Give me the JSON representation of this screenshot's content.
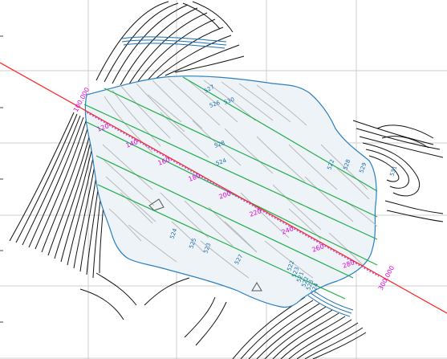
{
  "map": {
    "colors": {
      "background": "#ffffff",
      "grid": "#cfcfcf",
      "contour_outside": "#111111",
      "contour_inside": "#b9b9b9",
      "boundary": "#2a7fc0",
      "section_lines": "#1fae4a",
      "axis_line": "#ff2020",
      "station_labels": "#e000e0",
      "elevation_labels": "#1a6fb0"
    },
    "stations": [
      "100.000",
      "120",
      "140",
      "160",
      "180",
      "200",
      "220",
      "240",
      "260",
      "280",
      "300.000"
    ],
    "elevation_labels": [
      "527",
      "526",
      "530",
      "528",
      "524",
      "522",
      "528",
      "529",
      "531",
      "524",
      "525",
      "523",
      "527",
      "522",
      "523",
      "521",
      "522",
      "523",
      "524"
    ]
  }
}
